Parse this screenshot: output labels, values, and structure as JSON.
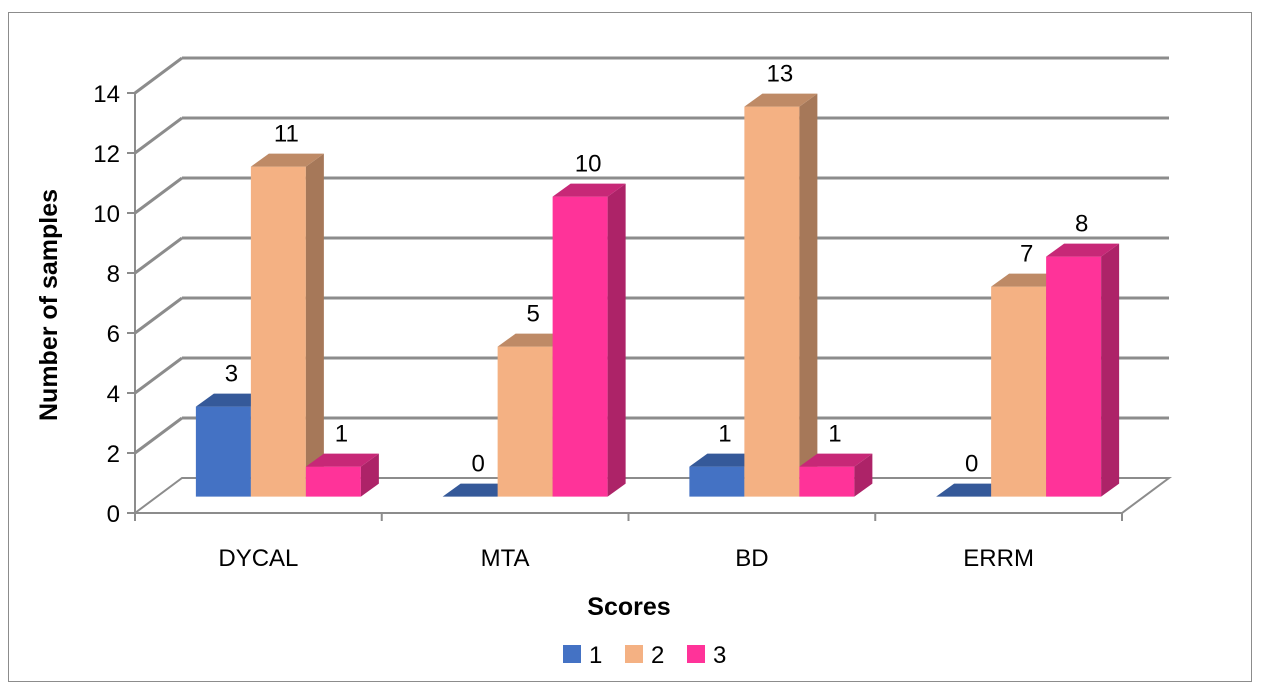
{
  "chart_data": {
    "type": "bar",
    "variant": "3d-clustered-column",
    "categories": [
      "DYCAL",
      "MTA",
      "BD",
      "ERRM"
    ],
    "series": [
      {
        "name": "1",
        "values": [
          3,
          0,
          1,
          0
        ],
        "color": "#4472C4"
      },
      {
        "name": "2",
        "values": [
          11,
          5,
          13,
          7
        ],
        "color": "#F4B183"
      },
      {
        "name": "3",
        "values": [
          1,
          10,
          1,
          8
        ],
        "color": "#FF3399"
      }
    ],
    "xlabel": "Scores",
    "ylabel": "Number of samples",
    "ylim": [
      0,
      14
    ],
    "yticks": [
      0,
      2,
      4,
      6,
      8,
      10,
      12,
      14
    ],
    "grid": true,
    "legend_position": "bottom",
    "data_labels": true
  }
}
